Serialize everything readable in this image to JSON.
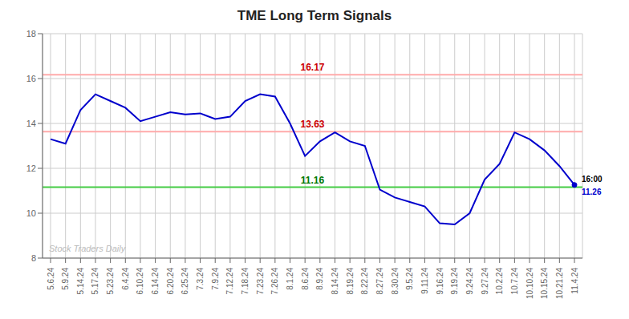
{
  "chart_data": {
    "type": "line",
    "title": "TME Long Term Signals",
    "categories": [
      "5.6.24",
      "5.9.24",
      "5.14.24",
      "5.17.24",
      "5.23.24",
      "6.4.24",
      "6.10.24",
      "6.14.24",
      "6.20.24",
      "6.25.24",
      "7.3.24",
      "7.9.24",
      "7.12.24",
      "7.18.24",
      "7.23.24",
      "7.26.24",
      "8.1.24",
      "8.6.24",
      "8.9.24",
      "8.14.24",
      "8.19.24",
      "8.22.24",
      "8.27.24",
      "8.30.24",
      "9.5.24",
      "9.11.24",
      "9.16.24",
      "9.19.24",
      "9.24.24",
      "9.27.24",
      "10.2.24",
      "10.7.24",
      "10.10.24",
      "10.15.24",
      "10.21.24",
      "11.4.24"
    ],
    "values": [
      13.3,
      13.1,
      14.6,
      15.3,
      15.0,
      14.7,
      14.1,
      14.3,
      14.5,
      14.4,
      14.45,
      14.2,
      14.3,
      15.0,
      15.3,
      15.2,
      14.0,
      12.55,
      13.2,
      13.6,
      13.2,
      13.0,
      11.05,
      10.7,
      10.5,
      10.3,
      9.55,
      9.5,
      10.0,
      11.5,
      12.2,
      13.6,
      13.3,
      12.8,
      12.1,
      11.26
    ],
    "color": "#0000cc",
    "ylim": [
      8,
      18
    ],
    "yticks": [
      8,
      10,
      12,
      14,
      16,
      18
    ],
    "grid": true,
    "reference_lines": [
      {
        "value": 16.17,
        "color": "#ffaaaa",
        "label": "16.17",
        "label_color": "#cc0000"
      },
      {
        "value": 13.63,
        "color": "#ffaaaa",
        "label": "13.63",
        "label_color": "#cc0000"
      },
      {
        "value": 11.16,
        "color": "#44cc44",
        "label": "11.16",
        "label_color": "#007700"
      }
    ],
    "annotations": [
      {
        "text": "16:00",
        "color": "#000000"
      },
      {
        "text": "11.26",
        "color": "#0000cc"
      }
    ],
    "watermark": {
      "text": "Stock Traders Daily",
      "color": "#bbbbbb"
    }
  }
}
